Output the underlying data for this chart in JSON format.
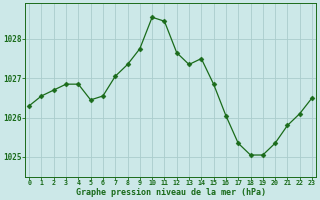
{
  "x": [
    0,
    1,
    2,
    3,
    4,
    5,
    6,
    7,
    8,
    9,
    10,
    11,
    12,
    13,
    14,
    15,
    16,
    17,
    18,
    19,
    20,
    21,
    22,
    23
  ],
  "y": [
    1026.3,
    1026.55,
    1026.7,
    1026.85,
    1026.85,
    1026.45,
    1026.55,
    1027.05,
    1027.35,
    1027.75,
    1028.55,
    1028.45,
    1027.65,
    1027.35,
    1027.5,
    1026.85,
    1026.05,
    1025.35,
    1025.05,
    1025.05,
    1025.35,
    1025.8,
    1026.1,
    1026.5
  ],
  "yticks": [
    1025,
    1026,
    1027,
    1028
  ],
  "xtick_labels": [
    "0",
    "1",
    "2",
    "3",
    "4",
    "5",
    "6",
    "7",
    "8",
    "9",
    "10",
    "11",
    "12",
    "13",
    "14",
    "15",
    "16",
    "17",
    "18",
    "19",
    "20",
    "21",
    "22",
    "23"
  ],
  "xlabel": "Graphe pression niveau de la mer (hPa)",
  "ylim": [
    1024.5,
    1028.9
  ],
  "xlim": [
    -0.3,
    23.3
  ],
  "line_color": "#1a6b1a",
  "marker_color": "#1a6b1a",
  "bg_color": "#cce8e8",
  "grid_color": "#aacccc",
  "tick_label_color": "#1a6b1a",
  "xlabel_color": "#1a6b1a",
  "axis_color": "#1a6b1a"
}
